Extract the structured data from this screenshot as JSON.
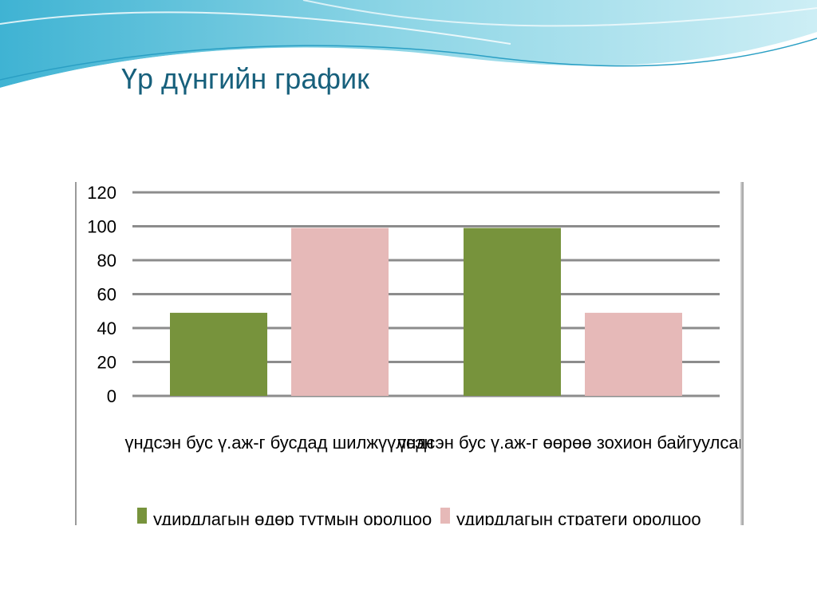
{
  "slide": {
    "title": "Үр дүнгийн график"
  },
  "chart_data": {
    "type": "bar",
    "title": "",
    "xlabel": "",
    "ylabel": "",
    "ylim": [
      0,
      120
    ],
    "yticks": [
      "0",
      "20",
      "40",
      "60",
      "80",
      "100",
      "120"
    ],
    "grid": true,
    "legend_position": "bottom",
    "categories": [
      "үндсэн бус ү.аж-г бусдад шилжүүлсэн",
      "үндсэн бус ү.аж-г өөрөө зохион байгуулсан"
    ],
    "series": [
      {
        "name": "удирдлагын өдөр тутмын оролцоо",
        "values": [
          49,
          99
        ],
        "color": "#77933c"
      },
      {
        "name": "удирдлагын стратеги оролцоо",
        "values": [
          99,
          49
        ],
        "color": "#e6b9b8"
      }
    ]
  }
}
